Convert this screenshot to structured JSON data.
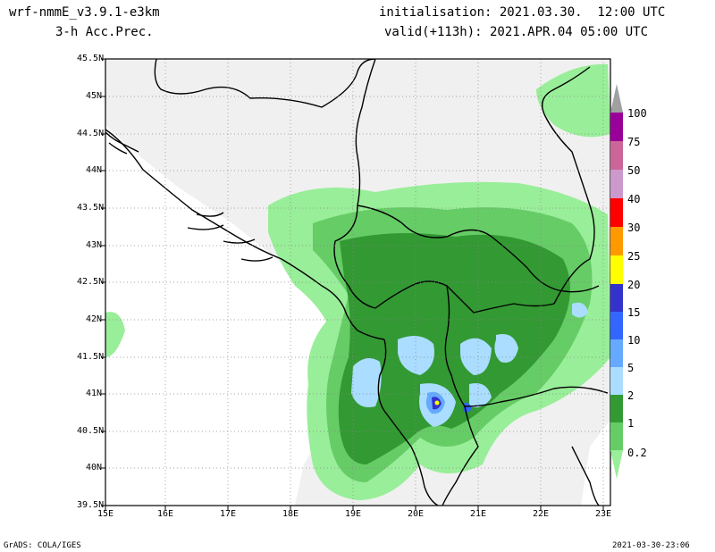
{
  "header": {
    "model": "wrf-nmmE_v3.9.1-e3km",
    "field": "3-h Acc.Prec.",
    "init": "initialisation: 2021.03.30.  12:00 UTC",
    "valid": "valid(+113h): 2021.APR.04 05:00 UTC"
  },
  "footer": {
    "left": "GrADS: COLA/IGES",
    "right": "2021-03-30-23:06"
  },
  "axes": {
    "lat_labels": [
      "45.5N",
      "45N",
      "44.5N",
      "44N",
      "43.5N",
      "43N",
      "42.5N",
      "42N",
      "41.5N",
      "41N",
      "40.5N",
      "40N",
      "39.5N"
    ],
    "lon_labels": [
      "15E",
      "16E",
      "17E",
      "18E",
      "19E",
      "20E",
      "21E",
      "22E",
      "23E"
    ]
  },
  "colorbar": {
    "labels": [
      "100",
      "75",
      "50",
      "40",
      "30",
      "25",
      "20",
      "15",
      "10",
      "5",
      "2",
      "1",
      "0.2"
    ],
    "colors": [
      "#990099",
      "#cc6699",
      "#cc99cc",
      "#ff0000",
      "#ff9900",
      "#ffff00",
      "#3333cc",
      "#3366ff",
      "#66aaff",
      "#aaddff",
      "#339933",
      "#66cc66",
      "#99ee99"
    ]
  },
  "map": {
    "land_color": "#f0f0f0",
    "light_green": "#99ee99",
    "mid_green": "#66cc66",
    "dark_green": "#339933",
    "light_blue": "#aaddff"
  }
}
